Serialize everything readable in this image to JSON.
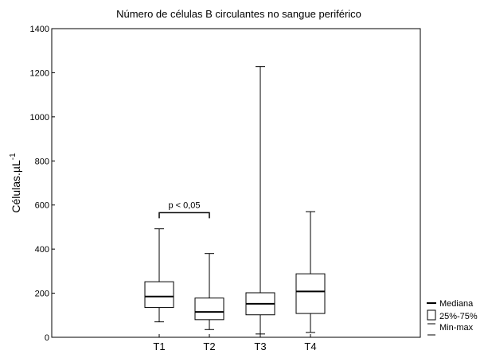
{
  "chart_data": {
    "type": "boxplot",
    "title": "Número de células B circulantes no sangue periférico",
    "ylabel": "Células.µL",
    "ylabel_superscript": "-1",
    "ylim": [
      0,
      1400
    ],
    "yticks": [
      0,
      200,
      400,
      600,
      800,
      1000,
      1200,
      1400
    ],
    "categories": [
      "T1",
      "T2",
      "T3",
      "T4"
    ],
    "boxes": [
      {
        "name": "T1",
        "min": 70,
        "q1": 135,
        "median": 185,
        "q3": 252,
        "max": 492
      },
      {
        "name": "T2",
        "min": 35,
        "q1": 80,
        "median": 115,
        "q3": 178,
        "max": 380
      },
      {
        "name": "T3",
        "min": 15,
        "q1": 102,
        "median": 152,
        "q3": 202,
        "max": 1228
      },
      {
        "name": "T4",
        "min": 22,
        "q1": 108,
        "median": 208,
        "q3": 288,
        "max": 570
      }
    ],
    "annotation": {
      "text": "p < 0,05",
      "from": "T1",
      "to": "T2",
      "y": 565
    },
    "legend": {
      "position": "bottom-right-outside",
      "items": [
        {
          "label": "Mediana",
          "symbol": "median-line"
        },
        {
          "label": "25%-75%",
          "symbol": "box"
        },
        {
          "label": "Min-max",
          "symbol": "whisker"
        }
      ]
    }
  }
}
